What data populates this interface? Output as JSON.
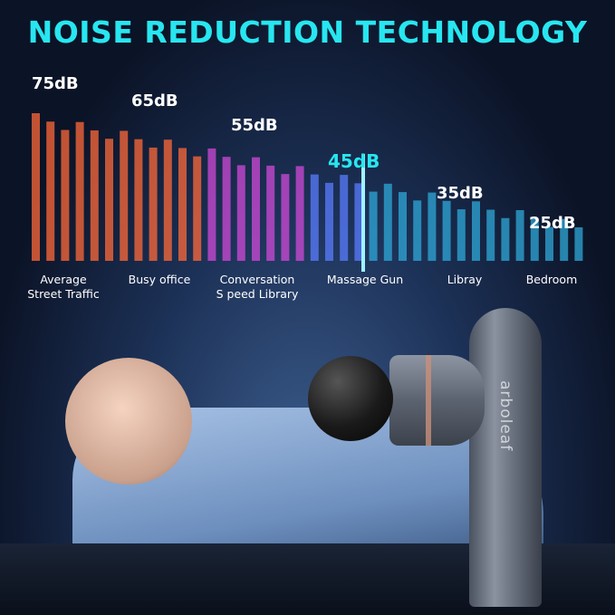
{
  "title": "NOISE REDUCTION TECHNOLOGY",
  "brand": "arboleaf",
  "levels": [
    {
      "db": "75dB",
      "line1": "Average",
      "line2": "Street Traffic"
    },
    {
      "db": "65dB",
      "line1": "Busy office"
    },
    {
      "db": "55dB",
      "line1": "Conversation",
      "line2": "S peed Library"
    },
    {
      "db": "45dB",
      "line1": "Massage Gun",
      "highlight": true
    },
    {
      "db": "35dB",
      "line1": "Libray"
    },
    {
      "db": "25dB",
      "line1": "Bedroom"
    }
  ],
  "colors": {
    "title": "#27e6f0",
    "highlight": "#27e6f0",
    "text": "#ffffff"
  }
}
